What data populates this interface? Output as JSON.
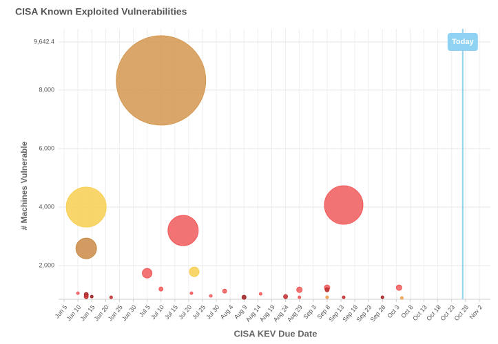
{
  "chart_data": {
    "type": "bubble",
    "title": "CISA Known Exploited Vulnerabilities",
    "x_label": "CISA KEV Due Date",
    "y_label": "# Machines Vulnerable",
    "xlim": [
      "Jun 3",
      "Nov 6"
    ],
    "xticks": [
      "Jun 5",
      "Jun 10",
      "Jun 15",
      "Jun 20",
      "Jun 25",
      "Jun 30",
      "Jul 5",
      "Jul 10",
      "Jul 15",
      "Jul 20",
      "Jul 25",
      "Jul 30",
      "Aug 4",
      "Aug 9",
      "Aug 14",
      "Aug 19",
      "Aug 24",
      "Aug 29",
      "Sep 3",
      "Sep 8",
      "Sep 13",
      "Sep 18",
      "Sep 23",
      "Sep 28",
      "Oct 3",
      "Oct 8",
      "Oct 13",
      "Oct 18",
      "Oct 23",
      "Oct 28",
      "Nov 2"
    ],
    "ylim": [
      850,
      10090
    ],
    "yticks": [
      {
        "value": 2000,
        "label": "2,000"
      },
      {
        "value": 4000,
        "label": "4,000"
      },
      {
        "value": 6000,
        "label": "6,000"
      },
      {
        "value": 8000,
        "label": "8,000"
      },
      {
        "value": 9642.4,
        "label": "9,642.4"
      }
    ],
    "grid": true,
    "today": {
      "label": "Today",
      "x": "Oct 27",
      "color": "#8fd2f2"
    },
    "series": [
      {
        "x": [
          "Jul 10",
          "Jun 13",
          "Jun 13",
          "Jul 18",
          "Sep 14",
          "Jul 5",
          "Jul 22",
          "Jun 10",
          "Jun 13",
          "Jun 13",
          "Jun 15",
          "Jun 22",
          "Jul 10",
          "Jul 21",
          "Jul 28",
          "Aug 2",
          "Aug 9",
          "Aug 15",
          "Aug 24",
          "Aug 29",
          "Aug 29",
          "Sep 8",
          "Sep 8",
          "Sep 8",
          "Sep 14",
          "Sep 28",
          "Oct 4",
          "Oct 5"
        ],
        "values": [
          8329,
          4000,
          2588,
          3200,
          4071,
          1741,
          1788,
          1059,
          1012,
          941,
          941,
          918,
          1200,
          1059,
          965,
          1129,
          918,
          1035,
          941,
          1176,
          918,
          1247,
          1176,
          918,
          918,
          918,
          1247,
          894
        ],
        "sizes": [
          8150,
          1620,
          434,
          934,
          1512,
          95,
          95,
          8,
          17,
          17,
          8,
          8,
          17,
          8,
          8,
          17,
          17,
          8,
          17,
          31,
          8,
          31,
          17,
          8,
          8,
          8,
          31,
          8
        ],
        "colors": [
          "#d4974f",
          "#f7cf52",
          "#c98a45",
          "#f05a5a",
          "#f05a5a",
          "#f05a5a",
          "#f7cf52",
          "#f05a5a",
          "#a02020",
          "#c03030",
          "#a02020",
          "#c03030",
          "#f05a5a",
          "#f05a5a",
          "#f05a5a",
          "#f05a5a",
          "#a02020",
          "#f05a5a",
          "#c03030",
          "#f05a5a",
          "#f05a5a",
          "#f05a5a",
          "#c03030",
          "#f0a050",
          "#c03030",
          "#a02020",
          "#f05a5a",
          "#f0a050"
        ]
      }
    ]
  }
}
